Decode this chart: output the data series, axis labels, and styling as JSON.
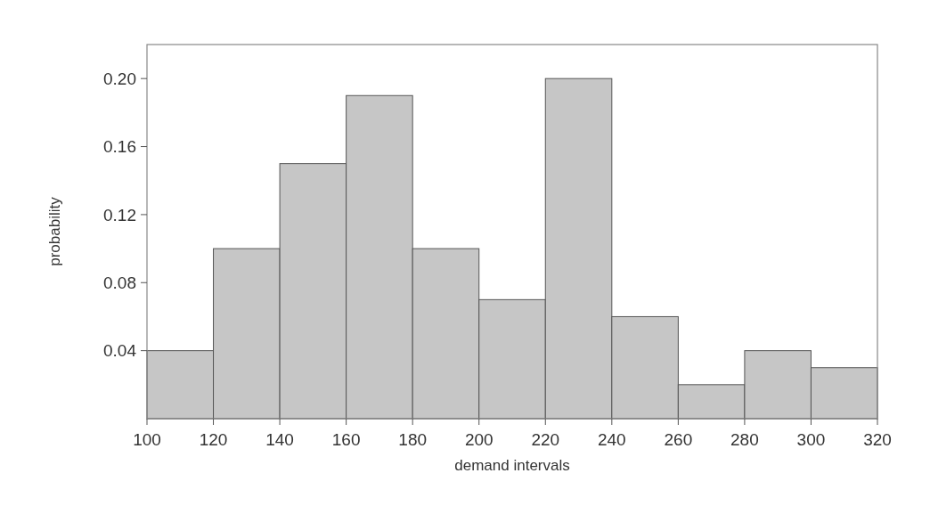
{
  "chart_data": {
    "type": "histogram",
    "xlabel": "demand intervals",
    "ylabel": "probability",
    "bins": [
      100,
      120,
      140,
      160,
      180,
      200,
      220,
      240,
      260,
      280,
      300,
      320
    ],
    "values": [
      0.04,
      0.1,
      0.15,
      0.19,
      0.1,
      0.07,
      0.2,
      0.06,
      0.02,
      0.04,
      0.03
    ],
    "color": "#c6c6c6",
    "xlim": [
      100,
      320
    ],
    "xticks": [
      100,
      120,
      140,
      160,
      180,
      200,
      220,
      240,
      260,
      280,
      300,
      320
    ],
    "ylim": [
      0,
      0.22
    ],
    "yticks": [
      {
        "value": 0.04,
        "label": "0.04"
      },
      {
        "value": 0.08,
        "label": "0.08"
      },
      {
        "value": 0.12,
        "label": "0.12"
      },
      {
        "value": 0.16,
        "label": "0.16"
      },
      {
        "value": 0.2,
        "label": "0.20"
      }
    ],
    "grid": false
  }
}
